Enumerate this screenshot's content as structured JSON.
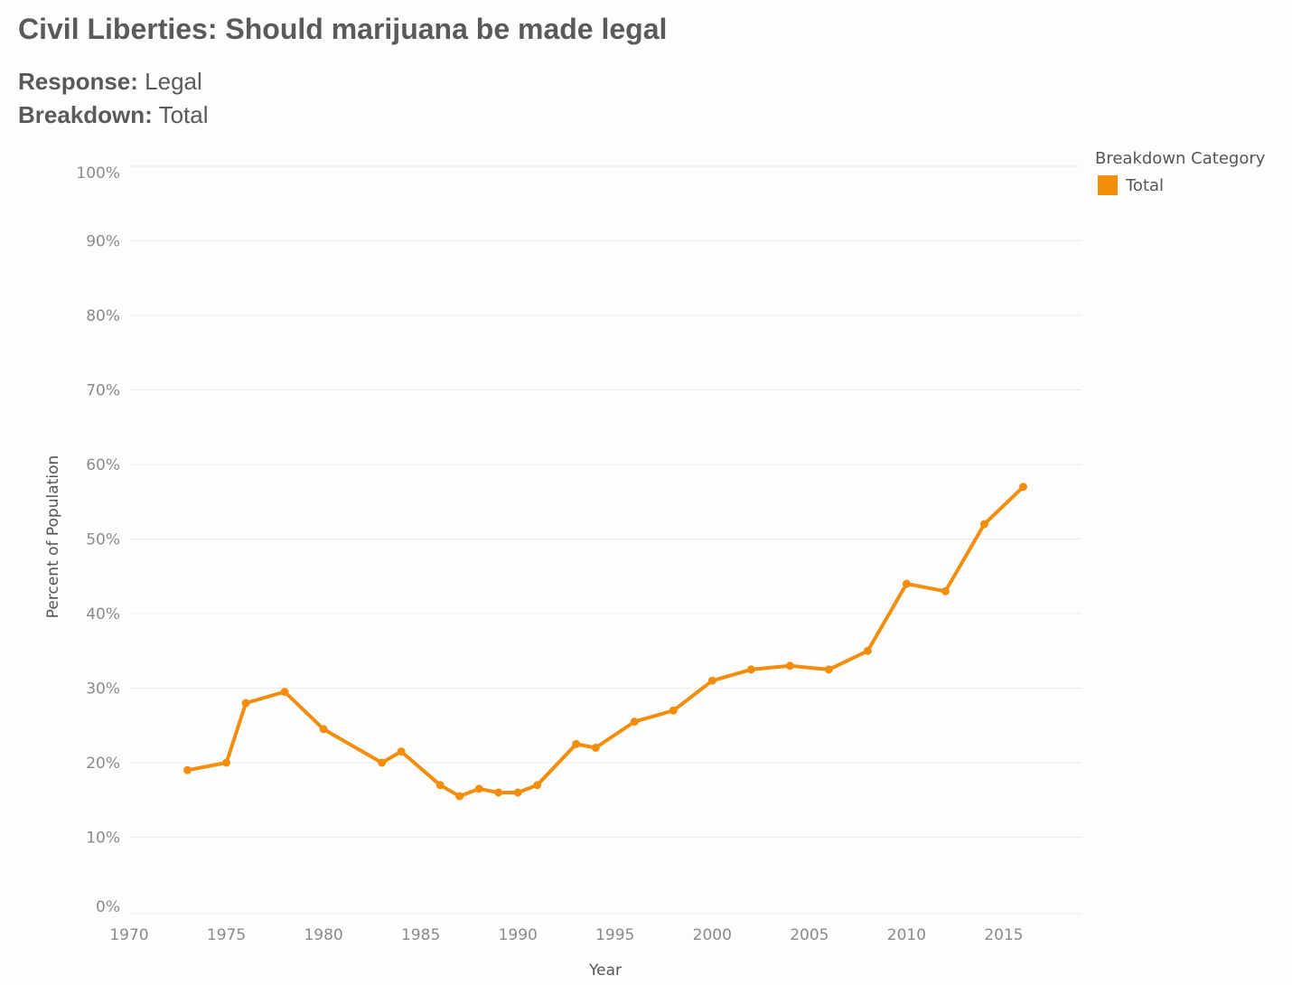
{
  "header": {
    "title": "Civil Liberties: Should marijuana be made legal",
    "response_label": "Response:",
    "response_value": "Legal",
    "breakdown_label": "Breakdown:",
    "breakdown_value": "Total"
  },
  "legend": {
    "title": "Breakdown Category",
    "items": [
      {
        "label": "Total",
        "color": "#f28e0b"
      }
    ]
  },
  "chart_data": {
    "type": "line",
    "xlabel": "Year",
    "ylabel": "Percent of Population",
    "xlim": [
      1970,
      2019
    ],
    "ylim": [
      0,
      100
    ],
    "x_ticks": [
      1970,
      1975,
      1980,
      1985,
      1990,
      1995,
      2000,
      2005,
      2010,
      2015
    ],
    "y_ticks": [
      "0%",
      "10%",
      "20%",
      "30%",
      "40%",
      "50%",
      "60%",
      "70%",
      "80%",
      "90%",
      "100%"
    ],
    "grid": true,
    "legend_position": "top-right",
    "series": [
      {
        "name": "Total",
        "color": "#f28e0b",
        "x": [
          1973,
          1975,
          1976,
          1978,
          1980,
          1983,
          1984,
          1986,
          1987,
          1988,
          1989,
          1990,
          1991,
          1993,
          1994,
          1996,
          1998,
          2000,
          2002,
          2004,
          2006,
          2008,
          2010,
          2012,
          2014,
          2016
        ],
        "y": [
          19,
          20,
          28,
          29.5,
          24.5,
          20,
          21.5,
          17,
          15.5,
          16.5,
          16,
          16,
          17,
          22.5,
          22,
          25.5,
          27,
          31,
          32.5,
          33,
          32.5,
          35,
          44,
          43,
          52,
          57
        ]
      }
    ]
  }
}
